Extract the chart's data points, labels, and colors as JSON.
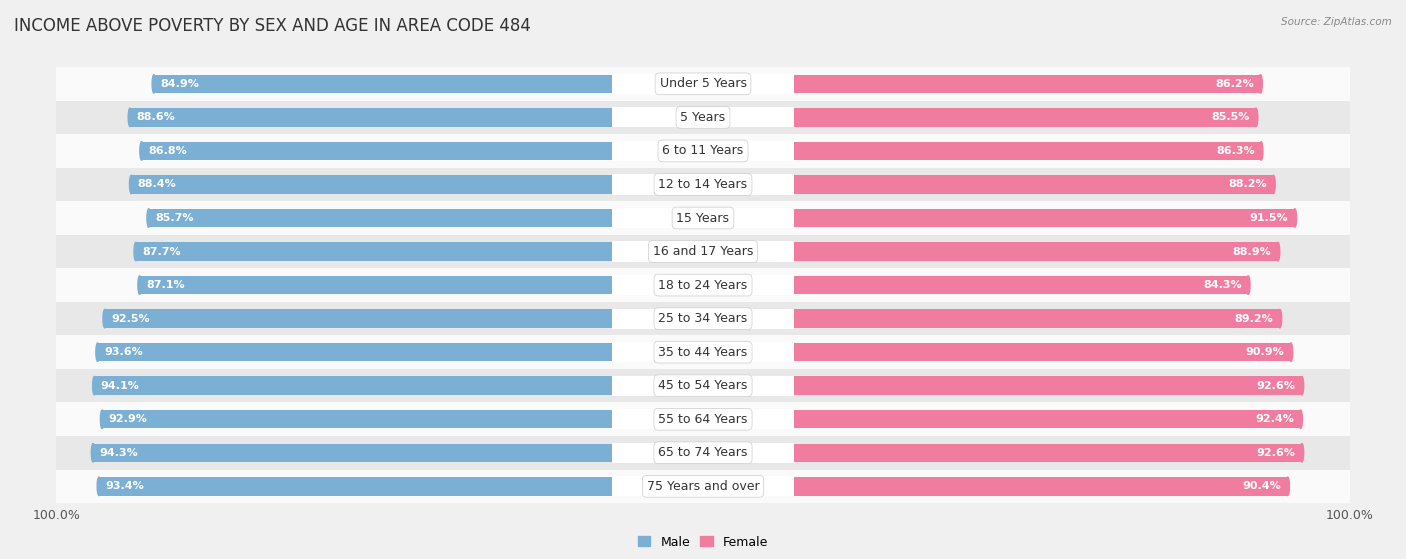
{
  "title": "INCOME ABOVE POVERTY BY SEX AND AGE IN AREA CODE 484",
  "source": "Source: ZipAtlas.com",
  "categories": [
    "Under 5 Years",
    "5 Years",
    "6 to 11 Years",
    "12 to 14 Years",
    "15 Years",
    "16 and 17 Years",
    "18 to 24 Years",
    "25 to 34 Years",
    "35 to 44 Years",
    "45 to 54 Years",
    "55 to 64 Years",
    "65 to 74 Years",
    "75 Years and over"
  ],
  "male_values": [
    84.9,
    88.6,
    86.8,
    88.4,
    85.7,
    87.7,
    87.1,
    92.5,
    93.6,
    94.1,
    92.9,
    94.3,
    93.4
  ],
  "female_values": [
    86.2,
    85.5,
    86.3,
    88.2,
    91.5,
    88.9,
    84.3,
    89.2,
    90.9,
    92.6,
    92.4,
    92.6,
    90.4
  ],
  "male_color": "#7bafd4",
  "female_color": "#f07ca0",
  "male_bar_light": "#aecce6",
  "female_bar_light": "#f9b8cc",
  "male_label": "Male",
  "female_label": "Female",
  "axis_max": 100.0,
  "bg_color": "#f0f0f0",
  "row_even_color": "#e8e8e8",
  "row_odd_color": "#fafafa",
  "title_fontsize": 12,
  "cat_fontsize": 9,
  "value_fontsize": 8,
  "legend_fontsize": 9
}
